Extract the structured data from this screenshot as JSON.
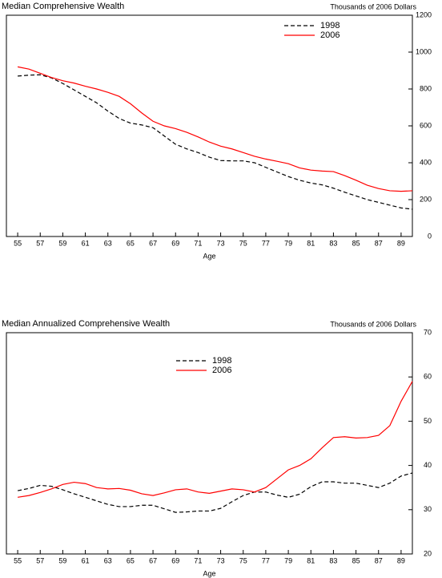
{
  "chart_data": [
    {
      "type": "line",
      "title": "Median Comprehensive Wealth",
      "y_label": "Thousands of 2006 Dollars",
      "x_label": "Age",
      "x": [
        55,
        56,
        57,
        58,
        59,
        60,
        61,
        62,
        63,
        64,
        65,
        66,
        67,
        68,
        69,
        70,
        71,
        72,
        73,
        74,
        75,
        76,
        77,
        78,
        79,
        80,
        81,
        82,
        83,
        84,
        85,
        86,
        87,
        88,
        89,
        90
      ],
      "series": [
        {
          "name": "1998",
          "color": "#000000",
          "dash": true,
          "values": [
            870,
            875,
            877,
            860,
            830,
            795,
            760,
            725,
            680,
            640,
            615,
            605,
            590,
            545,
            500,
            475,
            455,
            430,
            412,
            410,
            410,
            400,
            375,
            350,
            325,
            305,
            290,
            280,
            262,
            240,
            220,
            200,
            185,
            170,
            155,
            148
          ]
        },
        {
          "name": "2006",
          "color": "#ff0000",
          "dash": false,
          "values": [
            920,
            908,
            885,
            862,
            845,
            832,
            815,
            800,
            782,
            760,
            720,
            670,
            625,
            600,
            585,
            565,
            540,
            512,
            490,
            475,
            455,
            435,
            420,
            408,
            395,
            372,
            360,
            355,
            352,
            330,
            305,
            278,
            260,
            248,
            245,
            248
          ]
        }
      ],
      "xlim": [
        54,
        90
      ],
      "xticks": [
        55,
        57,
        59,
        61,
        63,
        65,
        67,
        69,
        71,
        73,
        75,
        77,
        79,
        81,
        83,
        85,
        87,
        89
      ],
      "ylim": [
        0,
        1200
      ],
      "yticks": [
        0,
        200,
        400,
        600,
        800,
        1000,
        1200
      ],
      "y_axis_side": "right",
      "legend": "top"
    },
    {
      "type": "line",
      "title": "Median Annualized Comprehensive Wealth",
      "y_label": "Thousands of 2006 Dollars",
      "x_label": "Age",
      "x": [
        55,
        56,
        57,
        58,
        59,
        60,
        61,
        62,
        63,
        64,
        65,
        66,
        67,
        68,
        69,
        70,
        71,
        72,
        73,
        74,
        75,
        76,
        77,
        78,
        79,
        80,
        81,
        82,
        83,
        84,
        85,
        86,
        87,
        88,
        89,
        90
      ],
      "series": [
        {
          "name": "1998",
          "color": "#000000",
          "dash": true,
          "values": [
            34.3,
            34.8,
            35.5,
            35.3,
            34.5,
            33.6,
            32.8,
            32.0,
            31.2,
            30.7,
            30.7,
            31.0,
            31.0,
            30.2,
            29.4,
            29.5,
            29.7,
            29.7,
            30.3,
            31.8,
            33.2,
            34.0,
            34.0,
            33.3,
            32.8,
            33.5,
            35.2,
            36.3,
            36.3,
            36.0,
            36.0,
            35.5,
            35.0,
            36.0,
            37.6,
            38.3
          ]
        },
        {
          "name": "2006",
          "color": "#ff0000",
          "dash": false,
          "values": [
            32.8,
            33.2,
            33.9,
            34.7,
            35.7,
            36.2,
            35.9,
            35.0,
            34.7,
            34.8,
            34.4,
            33.6,
            33.2,
            33.8,
            34.5,
            34.7,
            34.0,
            33.7,
            34.2,
            34.7,
            34.5,
            34.0,
            35.0,
            37.0,
            39.0,
            40.0,
            41.5,
            44.0,
            46.3,
            46.5,
            46.2,
            46.3,
            46.8,
            49.0,
            54.5,
            59.0
          ]
        }
      ],
      "xlim": [
        54,
        90
      ],
      "xticks": [
        55,
        57,
        59,
        61,
        63,
        65,
        67,
        69,
        71,
        73,
        75,
        77,
        79,
        81,
        83,
        85,
        87,
        89
      ],
      "ylim": [
        20,
        70
      ],
      "yticks": [
        20,
        30,
        40,
        50,
        60,
        70
      ],
      "y_axis_side": "right",
      "legend": "top"
    }
  ]
}
